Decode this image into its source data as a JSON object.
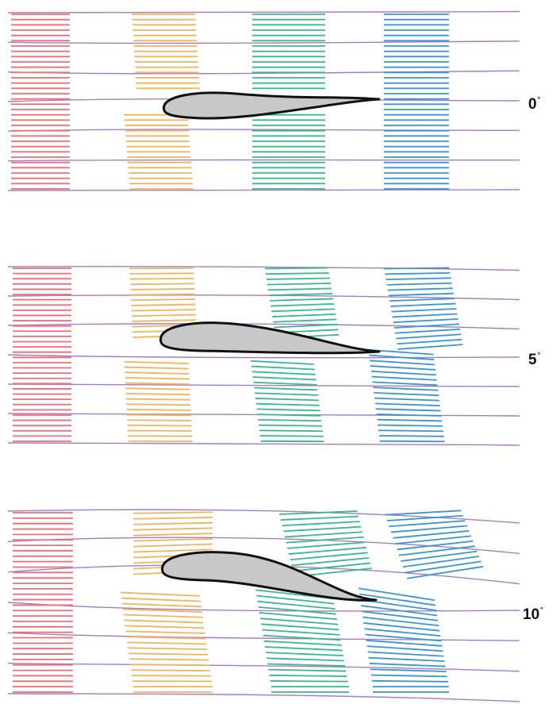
{
  "colors": {
    "streamline": "#a97bc4",
    "band_1": "#ee6f78",
    "band_2": "#f4b35c",
    "band_3": "#39b98b",
    "band_4": "#3a95d6",
    "airfoil_fill": "#c8c8c8",
    "airfoil_stroke": "#111111"
  },
  "panels": [
    {
      "angle_value": "0",
      "degree_symbol": "°"
    },
    {
      "angle_value": "5",
      "degree_symbol": "°"
    },
    {
      "angle_value": "10",
      "degree_symbol": "°"
    }
  ]
}
